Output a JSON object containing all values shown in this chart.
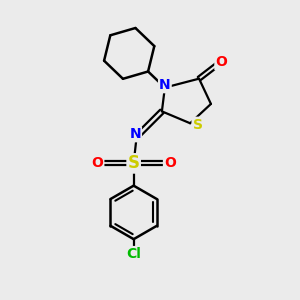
{
  "background_color": "#ebebeb",
  "bond_color": "#000000",
  "atom_colors": {
    "N": "#0000ff",
    "O": "#ff0000",
    "S_thio": "#cccc00",
    "S_sulfo": "#cccc00",
    "Cl": "#00bb00",
    "C": "#000000"
  },
  "font_size_atom": 10,
  "fig_width": 3.0,
  "fig_height": 3.0,
  "dpi": 100
}
